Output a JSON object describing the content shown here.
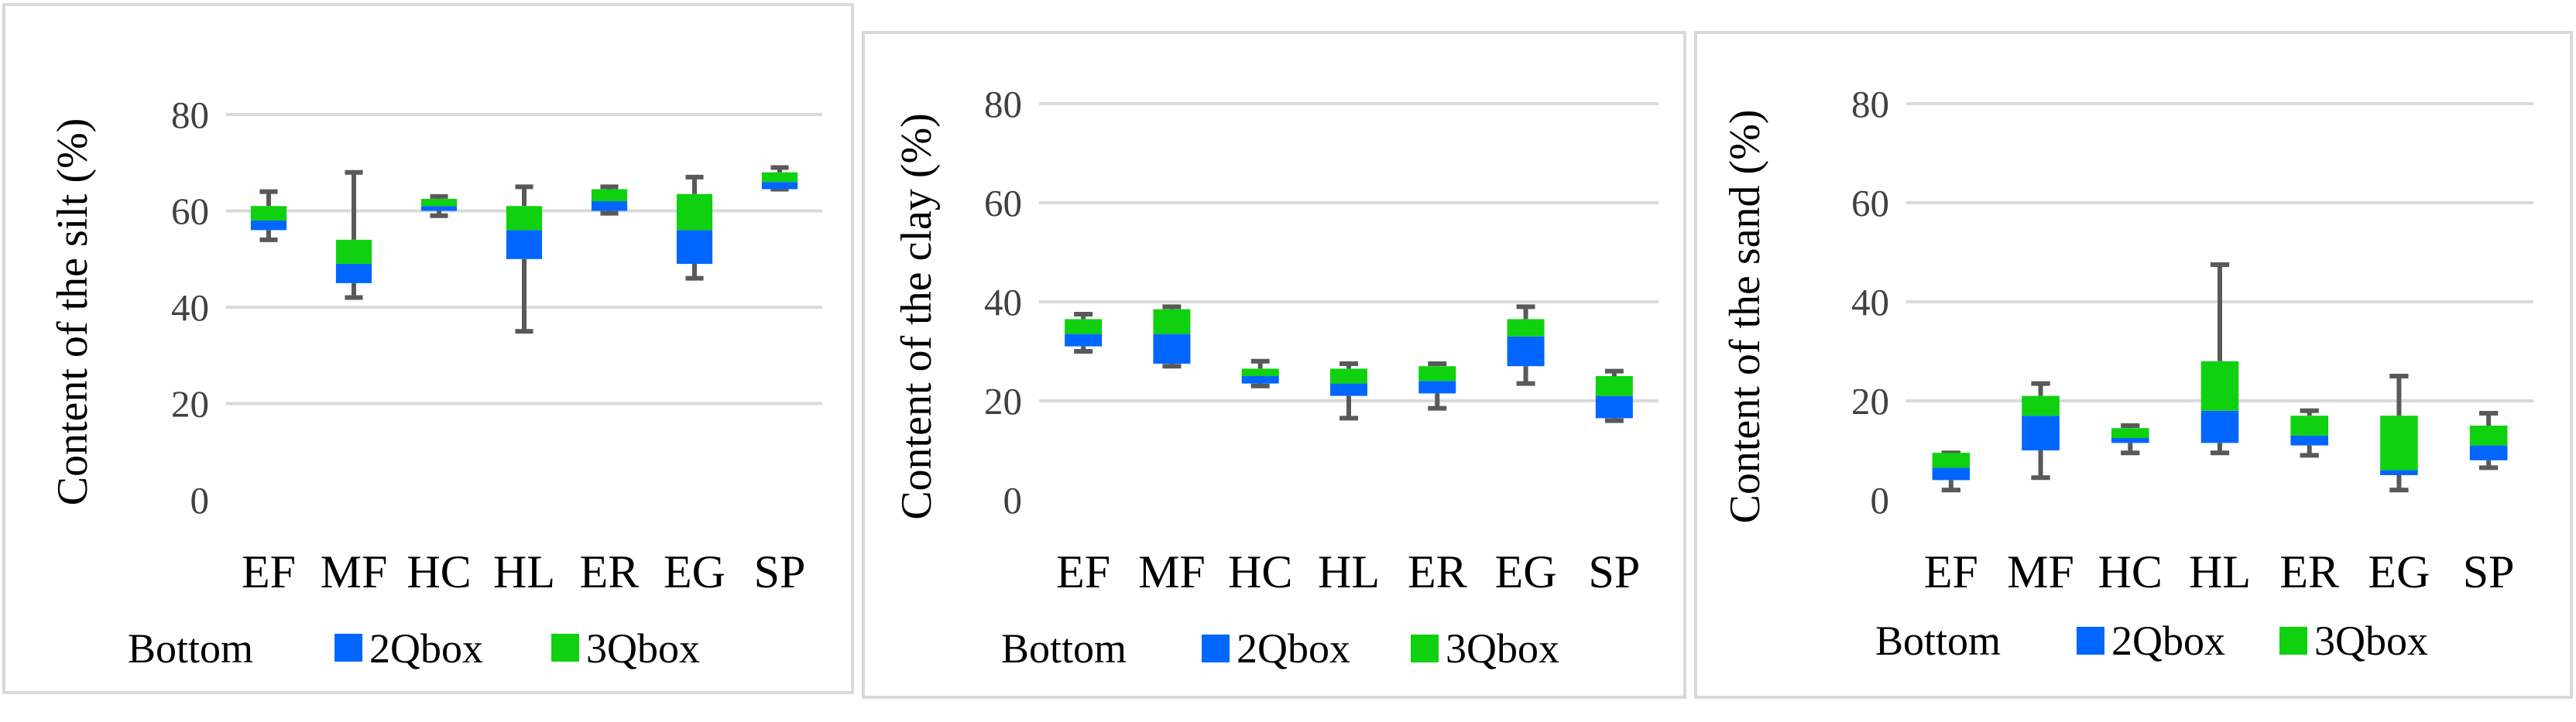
{
  "colors": {
    "q2": "#0066ff",
    "q3": "#0fd10f",
    "whisker": "#595959",
    "grid": "#d9d9d9"
  },
  "legend": {
    "bottom": "Bottom",
    "q2": "2Qbox",
    "q3": "3Qbox"
  },
  "chart_data": [
    {
      "type": "bar",
      "subtype": "stacked-box-plot",
      "title": "",
      "ylabel": "Content of the silt (%)",
      "ylim": [
        0,
        80
      ],
      "yticks": [
        0,
        20,
        40,
        60,
        80
      ],
      "grid": true,
      "legend_position": "bottom",
      "categories": [
        "EF",
        "MF",
        "HC",
        "HL",
        "ER",
        "EG",
        "SP"
      ],
      "series": [
        {
          "name": "Bottom",
          "values": [
            56,
            45,
            60,
            50,
            60,
            49,
            64.5
          ]
        },
        {
          "name": "2Qbox",
          "values": [
            2,
            4,
            1,
            6,
            2,
            7,
            1.5
          ]
        },
        {
          "name": "3Qbox",
          "values": [
            3,
            5,
            1.5,
            5,
            2.5,
            7.5,
            2
          ]
        }
      ],
      "whisker_min": [
        54,
        42,
        59,
        35,
        59.5,
        46,
        64.5
      ],
      "whisker_max": [
        64,
        68,
        63,
        65,
        65,
        67,
        69
      ]
    },
    {
      "type": "bar",
      "subtype": "stacked-box-plot",
      "title": "",
      "ylabel": "Content of the clay (%)",
      "ylim": [
        0,
        80
      ],
      "yticks": [
        0,
        20,
        40,
        60,
        80
      ],
      "grid": true,
      "legend_position": "bottom",
      "categories": [
        "EF",
        "MF",
        "HC",
        "HL",
        "ER",
        "EG",
        "SP"
      ],
      "series": [
        {
          "name": "Bottom",
          "values": [
            31,
            27.5,
            23.5,
            21,
            21.5,
            27,
            16.5
          ]
        },
        {
          "name": "2Qbox",
          "values": [
            2.5,
            6,
            1.5,
            2.5,
            2.5,
            6,
            4.5
          ]
        },
        {
          "name": "3Qbox",
          "values": [
            3,
            5,
            1.5,
            3,
            3,
            3.5,
            4
          ]
        }
      ],
      "whisker_min": [
        30,
        27,
        23,
        16.5,
        18.5,
        23.5,
        16
      ],
      "whisker_max": [
        37.5,
        39,
        28,
        27.5,
        27.5,
        39,
        26
      ]
    },
    {
      "type": "bar",
      "subtype": "stacked-box-plot",
      "title": "",
      "ylabel": "Content of the sand (%)",
      "ylim": [
        0,
        80
      ],
      "yticks": [
        0,
        20,
        40,
        60,
        80
      ],
      "grid": true,
      "legend_position": "bottom",
      "categories": [
        "EF",
        "MF",
        "HC",
        "HL",
        "ER",
        "EG",
        "SP"
      ],
      "series": [
        {
          "name": "Bottom",
          "values": [
            4,
            10,
            11.5,
            11.5,
            11,
            5,
            8
          ]
        },
        {
          "name": "2Qbox",
          "values": [
            2.5,
            7,
            1,
            6.5,
            2,
            1,
            3
          ]
        },
        {
          "name": "3Qbox",
          "values": [
            3,
            4,
            2,
            10,
            4,
            11,
            4
          ]
        }
      ],
      "whisker_min": [
        2,
        4.5,
        9.5,
        9.5,
        9,
        2,
        6.5
      ],
      "whisker_max": [
        9.5,
        23.5,
        15,
        47.5,
        18,
        25,
        17.5
      ]
    }
  ]
}
